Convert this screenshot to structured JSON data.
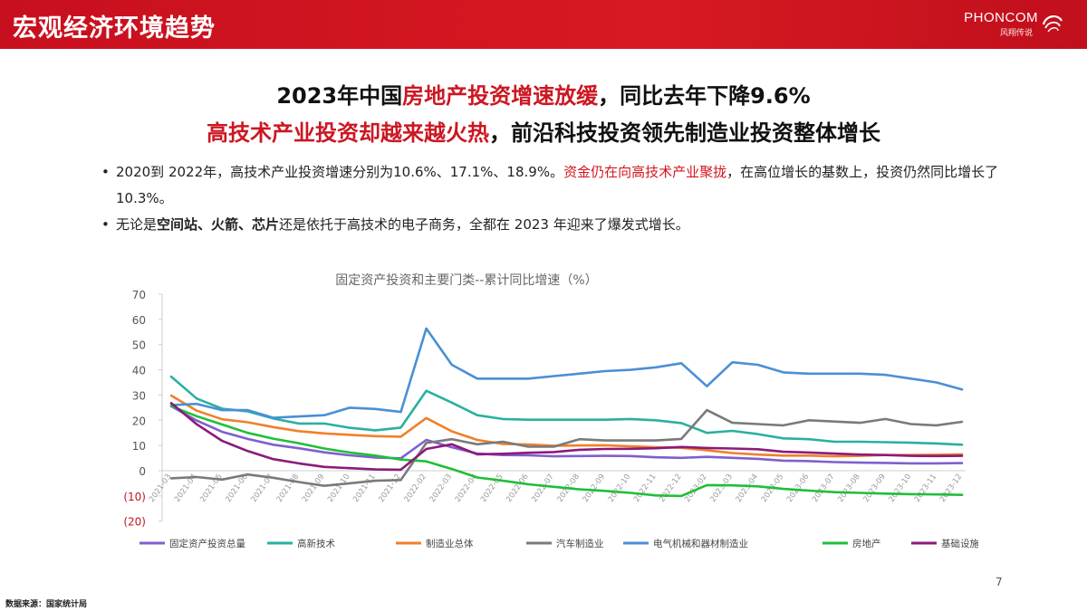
{
  "header": {
    "title": "宏观经济环境趋势",
    "logo_text": "PHONCOM",
    "logo_sub": "风翔传说"
  },
  "headline": {
    "line1": {
      "pre": "2023年中国",
      "red": "房地产投资增速放缓",
      "post": "，同比去年下降9.6%"
    },
    "line2": {
      "red": "高技术产业投资却越来越火热",
      "post": "，前沿科技投资领先制造业投资整体增长"
    }
  },
  "bullets": [
    {
      "segments": [
        {
          "text": "2020到 2022年，高技术产业投资增速分别为10.6%、17.1%、18.9%。",
          "style": "normal"
        },
        {
          "text": "资金仍在向高技术产业聚拢",
          "style": "red"
        },
        {
          "text": "，在高位增长的基数上，投资仍然同比增长了10.3%。",
          "style": "normal"
        }
      ]
    },
    {
      "segments": [
        {
          "text": "无论是",
          "style": "normal"
        },
        {
          "text": "空间站、火箭、芯片",
          "style": "bold"
        },
        {
          "text": "还是依托于高技术的电子商务，全都在 2023 年迎来了爆发式增长。",
          "style": "normal"
        }
      ]
    }
  ],
  "chart_data": {
    "type": "line",
    "title": "固定资产投资和主要门类--累计同比增速（%）",
    "x": [
      "2021-03",
      "2021-04",
      "2021-05",
      "2021-06",
      "2021-07",
      "2021-08",
      "2021-09",
      "2021-10",
      "2021-11",
      "2021-12",
      "2022-02",
      "2022-03",
      "2022-04",
      "2022-05",
      "2022-06",
      "2022-07",
      "2022-08",
      "2022-09",
      "2022-10",
      "2022-11",
      "2022-12",
      "2023-02",
      "2023-03",
      "2023-04",
      "2023-05",
      "2023-06",
      "2023-07",
      "2023-08",
      "2023-09",
      "2023-10",
      "2023-11",
      "2023-12"
    ],
    "ylim": [
      -20,
      70
    ],
    "y_ticks": [
      70,
      60,
      50,
      40,
      30,
      20,
      10,
      0,
      -10,
      -20
    ],
    "y_tick_labels": [
      "70",
      "60",
      "50",
      "40",
      "30",
      "20",
      "10",
      "0",
      "(10)",
      "(20)"
    ],
    "grid": false,
    "legend_position": "bottom",
    "series": [
      {
        "name": "固定资产投资总量",
        "color": "#7f5fcf",
        "values": [
          25.6,
          19.9,
          15.4,
          12.6,
          10.3,
          8.9,
          7.3,
          6.1,
          5.2,
          4.9,
          12.2,
          9.3,
          6.8,
          6.2,
          6.1,
          5.7,
          5.8,
          5.9,
          5.8,
          5.3,
          5.1,
          5.5,
          5.1,
          4.7,
          4.0,
          3.8,
          3.4,
          3.2,
          3.1,
          2.9,
          2.9,
          3.0
        ]
      },
      {
        "name": "高新技术",
        "color": "#2ab0a0",
        "values": [
          37.3,
          28.6,
          24.6,
          23.5,
          20.7,
          18.7,
          18.7,
          17.0,
          16.0,
          17.1,
          31.7,
          27.0,
          22.0,
          20.5,
          20.2,
          20.2,
          20.2,
          20.2,
          20.5,
          20.0,
          18.9,
          15.0,
          15.8,
          14.5,
          12.8,
          12.5,
          11.5,
          11.5,
          11.3,
          11.1,
          10.8,
          10.3
        ]
      },
      {
        "name": "制造业总体",
        "color": "#f0802a",
        "values": [
          29.8,
          23.8,
          20.4,
          19.2,
          17.3,
          15.7,
          14.8,
          14.2,
          13.7,
          13.5,
          20.9,
          15.6,
          12.2,
          10.6,
          10.4,
          9.9,
          10.0,
          10.1,
          9.7,
          9.3,
          9.1,
          8.1,
          7.0,
          6.4,
          6.0,
          6.0,
          5.7,
          5.9,
          6.2,
          6.2,
          6.3,
          6.5
        ]
      },
      {
        "name": "汽车制造业",
        "color": "#7a7a7a",
        "values": [
          -3.0,
          -2.5,
          -3.5,
          -1.5,
          -2.8,
          -4.5,
          -6.0,
          -5.0,
          -4.0,
          -3.7,
          11.0,
          12.5,
          10.5,
          11.5,
          9.5,
          9.5,
          12.5,
          12.0,
          12.0,
          12.0,
          12.6,
          24.0,
          19.0,
          18.5,
          18.0,
          20.0,
          19.5,
          19.0,
          20.5,
          18.5,
          18.0,
          19.4
        ]
      },
      {
        "name": "电气机械和器材制造业",
        "color": "#4a8fd6",
        "values": [
          26.0,
          26.5,
          24.0,
          24.0,
          21.0,
          21.5,
          22.0,
          25.0,
          24.5,
          23.3,
          56.4,
          42.0,
          36.5,
          36.5,
          36.5,
          37.5,
          38.5,
          39.5,
          40.0,
          41.0,
          42.6,
          33.5,
          43.0,
          42.0,
          39.0,
          38.5,
          38.5,
          38.5,
          38.0,
          36.5,
          35.0,
          32.2
        ]
      },
      {
        "name": "房地产",
        "color": "#1fbf38",
        "values": [
          25.6,
          21.6,
          18.3,
          15.0,
          12.7,
          10.9,
          8.8,
          7.2,
          6.0,
          4.4,
          3.7,
          0.7,
          -2.7,
          -4.0,
          -5.4,
          -6.4,
          -7.4,
          -8.0,
          -8.8,
          -9.8,
          -10.0,
          -5.7,
          -5.8,
          -6.2,
          -7.2,
          -7.9,
          -8.5,
          -8.8,
          -9.1,
          -9.3,
          -9.4,
          -9.6
        ]
      },
      {
        "name": "基础设施",
        "color": "#8c1a7a",
        "values": [
          26.8,
          18.4,
          11.8,
          7.8,
          4.6,
          2.9,
          1.5,
          1.0,
          0.5,
          0.4,
          8.6,
          10.5,
          6.5,
          6.7,
          7.1,
          7.4,
          8.3,
          8.6,
          8.7,
          8.9,
          9.4,
          9.0,
          8.8,
          8.5,
          7.5,
          7.2,
          6.8,
          6.4,
          6.2,
          5.9,
          5.8,
          5.9
        ]
      }
    ]
  },
  "footer": {
    "source": "数据来源：国家统计局",
    "page": "7"
  }
}
